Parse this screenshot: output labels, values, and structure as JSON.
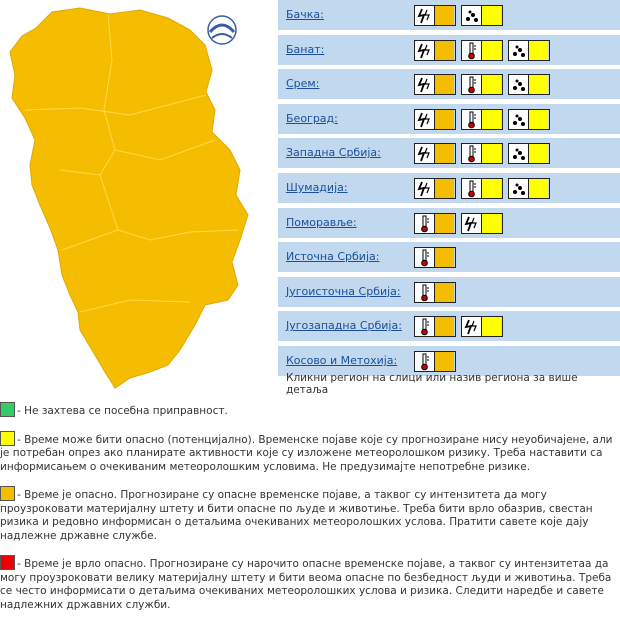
{
  "regions": [
    "Бачка:",
    "Банат:",
    "Срем:",
    "Београд:",
    "Западна Србија:",
    "Шумадија:",
    "Поморавље:",
    "Источна Србија:",
    "Југоисточна Србија:",
    "Југозападна Србија:",
    "Косово и Метохија:"
  ],
  "hint": "Кликни регион на слици или назив региона за више детаља",
  "legend": [
    "- Не захтева се посебна приправност.",
    "- Време може бити опасно (потенцијално). Временске појаве које су прогнозиране нису неуобичајене, али је потребан опрез ако планирате активности које су изложене метеоролошком ризику. Треба наставити са информисањем о очекиваним метеоролошким условима. Не предузимајте непотребне ризике.",
    "- Време је опасно. Прогнозиране су опасне временске појаве, а таквог су интензитета да могу проузроковати материјалну штету и бити опасне по људе и животиње. Треба бити врло обазрив, свестан ризика и редовно информисан о детаљима очекиваних метеоролошких услова. Пратити савете које дају надлежне државне службе.",
    "- Време је врло опасно. Прогнозиране су нарочито опасне временске појаве, а таквог су интензитетаа да могу проузроковати велику материјалну штету и бити веома опасне по безбедност људи и животиња. Треба се често информисати о детаљима очекиваних метеоролошких услова и ризика. Следити наредбе и савете надлежних државних служби."
  ]
}
